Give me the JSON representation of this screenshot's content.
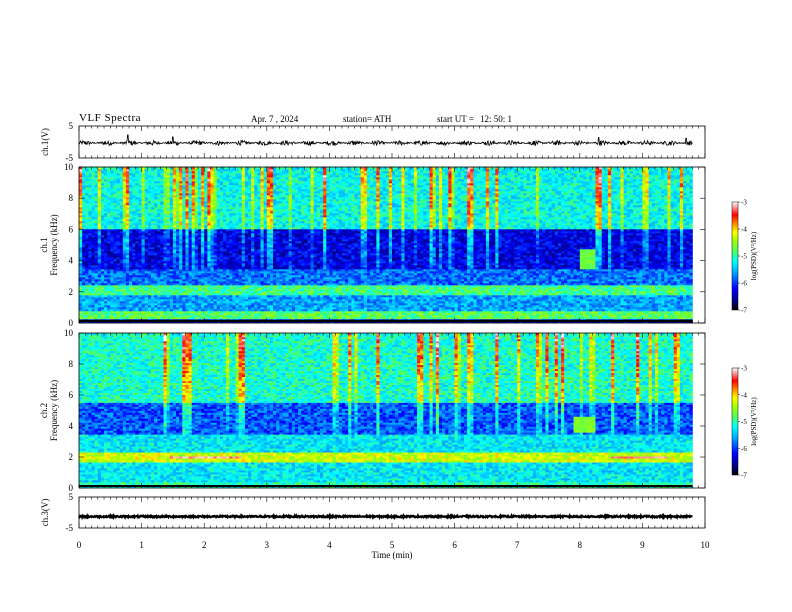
{
  "header": {
    "title": "VLF  Spectra",
    "date": "Apr. 7  , 2024",
    "station": "station= ATH",
    "start_label": "start  UT  =",
    "start_time": "12: 50: 1"
  },
  "colors": {
    "trace": "#000000",
    "colormap": [
      "#000000",
      "#00007f",
      "#0000ff",
      "#00aaff",
      "#00ffff",
      "#55ff55",
      "#aaff00",
      "#ffff00",
      "#ff8800",
      "#ff0000",
      "#ffffff"
    ]
  },
  "chart_data": [
    {
      "type": "line",
      "panel": "ch1-waveform",
      "ylabel": "ch.1(V)",
      "ylim": [
        -5,
        5
      ],
      "yticks": [
        "5",
        "-5"
      ],
      "xlim": [
        0,
        10
      ],
      "description_of_series": "noisy waveform centered near -0.3 V, amplitude about ±1 V with occasional spikes to ~2 V",
      "y_center": -0.3,
      "y_noise_amplitude": 0.8,
      "y_spikes": [
        {
          "x": 0.78,
          "y": 2.2
        },
        {
          "x": 1.5,
          "y": 1.6
        },
        {
          "x": 8.3,
          "y": 1.4
        },
        {
          "x": 9.7,
          "y": 1.2
        }
      ]
    },
    {
      "type": "heatmap",
      "panel": "ch1-spectrogram",
      "ylabel": "ch.1\nFrequency  (kHz)",
      "ylim": [
        0,
        10
      ],
      "yticks": [
        "0",
        "2",
        "4",
        "6",
        "8",
        "10"
      ],
      "xlim": [
        0,
        9.8
      ],
      "colorbar": {
        "label": "log(PSD)(V²/Hz)",
        "range": [
          -7,
          -3
        ],
        "ticks": [
          "-3",
          "-4",
          "-5",
          "-6",
          "-7"
        ]
      },
      "bands": [
        {
          "f_range": [
            0,
            0.3
          ],
          "level": -6.3
        },
        {
          "f_range": [
            0.3,
            0.8
          ],
          "level": -4.8
        },
        {
          "f_range": [
            0.8,
            1.8
          ],
          "level": -5.6
        },
        {
          "f_range": [
            1.8,
            2.4
          ],
          "level": -4.9
        },
        {
          "f_range": [
            2.4,
            3.5
          ],
          "level": -5.8
        },
        {
          "f_range": [
            3.5,
            6.0
          ],
          "level": -6.3
        },
        {
          "f_range": [
            6.0,
            10
          ],
          "level": -5.2
        }
      ],
      "features": [
        {
          "t": [
            8.0,
            8.25
          ],
          "f": [
            3.5,
            4.8
          ],
          "level": -4.7
        }
      ]
    },
    {
      "type": "heatmap",
      "panel": "ch2-spectrogram",
      "ylabel": "ch.2\nFrequency  (kHz)",
      "ylim": [
        0,
        10
      ],
      "yticks": [
        "0",
        "2",
        "4",
        "6",
        "8",
        "10"
      ],
      "xlim": [
        0,
        9.8
      ],
      "colorbar": {
        "label": "log(PSD)(V²/Hz)",
        "range": [
          -7,
          -3
        ],
        "ticks": [
          "-3",
          "-4",
          "-5",
          "-6",
          "-7"
        ]
      },
      "bands": [
        {
          "f_range": [
            0,
            0.4
          ],
          "level": -5.0
        },
        {
          "f_range": [
            0.4,
            1.7
          ],
          "level": -5.3
        },
        {
          "f_range": [
            1.7,
            2.3
          ],
          "level": -4.3
        },
        {
          "f_range": [
            2.3,
            3.5
          ],
          "level": -5.3
        },
        {
          "f_range": [
            3.5,
            5.5
          ],
          "level": -5.9
        },
        {
          "f_range": [
            5.5,
            10
          ],
          "level": -5.1
        }
      ],
      "features": [
        {
          "t": [
            1.45,
            2.6
          ],
          "f": [
            1.9,
            2.1
          ],
          "level": -3.2
        },
        {
          "t": [
            8.5,
            9.4
          ],
          "f": [
            1.9,
            2.1
          ],
          "level": -3.2
        },
        {
          "t": [
            7.9,
            8.25
          ],
          "f": [
            3.6,
            4.6
          ],
          "level": -4.6
        }
      ]
    },
    {
      "type": "line",
      "panel": "ch3-waveform",
      "ylabel": "ch.3(V)",
      "ylim": [
        -5,
        5
      ],
      "yticks": [
        "5",
        "-5"
      ],
      "xlim": [
        0,
        10
      ],
      "xlabel": "Time  (min)",
      "xticks": [
        "0",
        "1",
        "2",
        "3",
        "4",
        "5",
        "6",
        "7",
        "8",
        "9",
        "10"
      ],
      "y_center": -1.3,
      "y_noise_amplitude": 0.25
    }
  ]
}
